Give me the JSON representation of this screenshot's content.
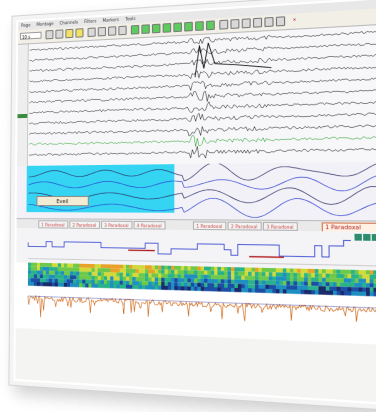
{
  "menubar": {
    "items": [
      "Page",
      "Montage",
      "Channels",
      "Filters",
      "Markers",
      "Tools"
    ]
  },
  "toolbar": {
    "select_value": "10 s",
    "buttons": [
      {
        "icon": "nav-icon",
        "color": "#d9d9d9"
      },
      {
        "icon": "list-icon",
        "color": "#d9d9d9"
      },
      {
        "icon": "amplitude-icon",
        "color": "#f1e266"
      },
      {
        "icon": "time-icon",
        "color": "#f1e266"
      },
      {
        "icon": "zoom-icon",
        "color": "#d9d9d9"
      },
      {
        "icon": "montage-icon",
        "color": "#d9d9d9"
      },
      {
        "icon": "filter-icon",
        "color": "#d9d9d9"
      },
      {
        "icon": "channel-icon",
        "color": "#d9d9d9"
      },
      {
        "icon": "play-icon",
        "color": "#5ccc5c"
      },
      {
        "icon": "fast-forward-icon",
        "color": "#5ccc5c"
      },
      {
        "icon": "rewind-icon",
        "color": "#5ccc5c"
      },
      {
        "icon": "record-icon",
        "color": "#5ccc5c"
      },
      {
        "icon": "step-icon",
        "color": "#5ccc5c"
      },
      {
        "icon": "pause-icon",
        "color": "#5ccc5c"
      },
      {
        "icon": "marker-icon",
        "color": "#5ccc5c"
      },
      {
        "icon": "annotate-icon",
        "color": "#5ccc5c"
      },
      {
        "icon": "camera-icon",
        "color": "#d9d9d9"
      },
      {
        "icon": "report-icon",
        "color": "#d9d9d9"
      },
      {
        "icon": "print-icon",
        "color": "#d9d9d9"
      },
      {
        "icon": "save-icon",
        "color": "#d9d9d9"
      },
      {
        "icon": "settings-icon",
        "color": "#d9d9d9"
      },
      {
        "icon": "tool-icon",
        "color": "#d9d9d9"
      },
      {
        "icon": "close-icon",
        "color": "#d9d9d9"
      }
    ]
  },
  "events": {
    "overlay_label": "Eveil",
    "tabs": [
      "1 Paradoxal",
      "2 Paradoxal",
      "3 Paradoxal",
      "4 Paradoxal",
      "1 Paradoxal",
      "2 Paradoxal",
      "3 Paradoxal"
    ],
    "selected_tab_label": "1 Paradoxal"
  },
  "colors": {
    "cyan_band": "#34d4f2",
    "marker_blue": "#2838c8",
    "trace_green": "#2aa02a",
    "trace_blue": "#2a3ad0",
    "highlight": "#b01b1b"
  }
}
